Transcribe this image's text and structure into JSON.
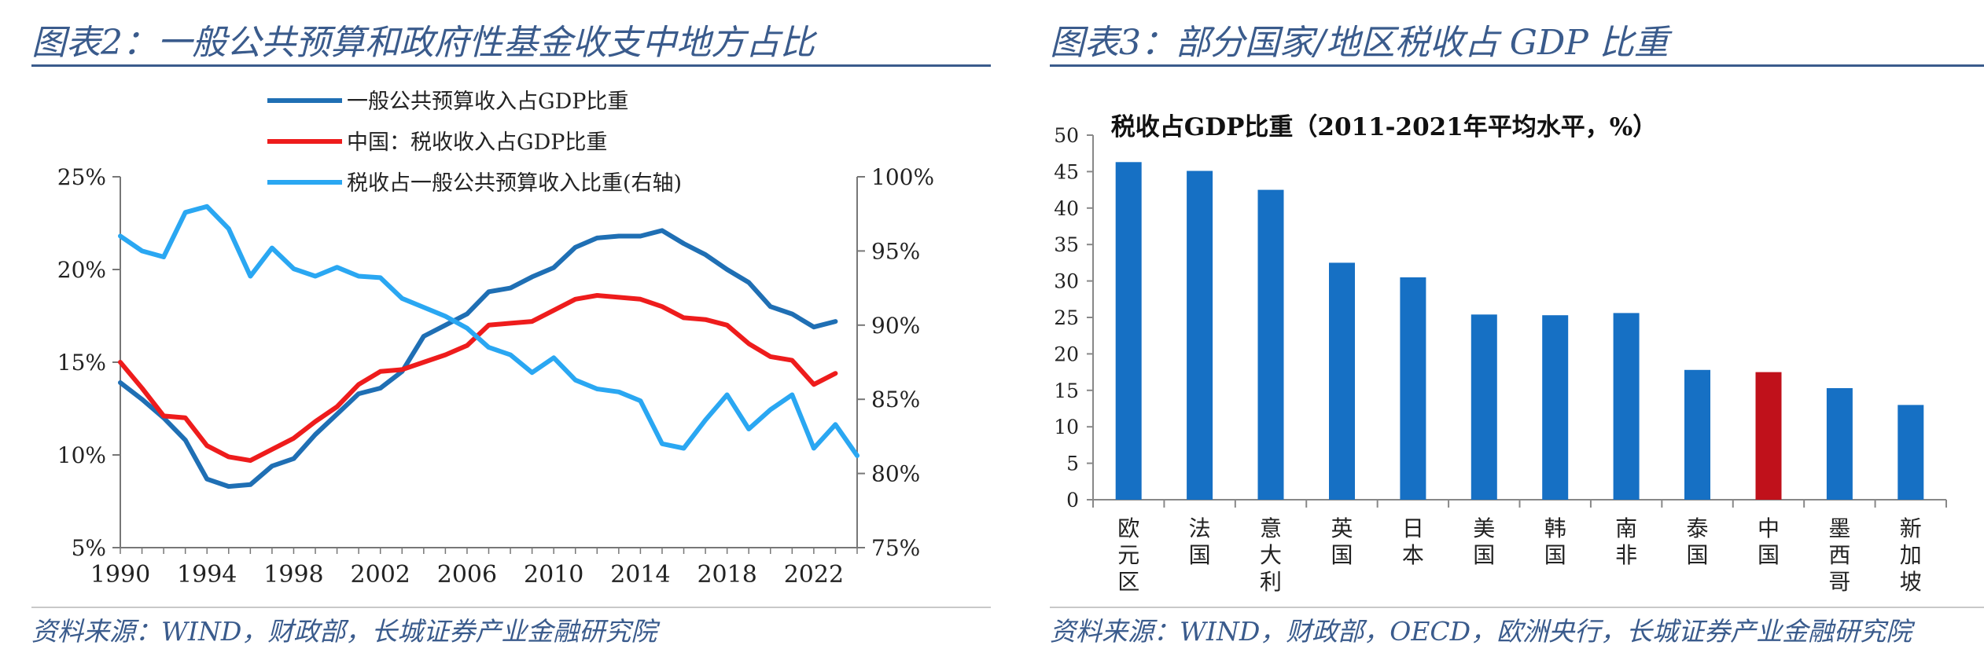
{
  "left": {
    "figure_title": "图表2：一般公共预算和政府性基金收支中地方占比",
    "source": "资料来源：WIND，财政部，长城证券产业金融研究院",
    "chart_data": {
      "type": "line",
      "title": "",
      "xlabel": "",
      "ylabel": "",
      "x_ticks": [
        "1990",
        "1994",
        "1998",
        "2002",
        "2006",
        "2010",
        "2014",
        "2018",
        "2022"
      ],
      "y_left_ticks": [
        "25%",
        "20%",
        "15%",
        "10%",
        "5%"
      ],
      "y_right_ticks": [
        "100%",
        "95%",
        "90%",
        "85%",
        "80%",
        "75%"
      ],
      "ylim_left": [
        5,
        25
      ],
      "ylim_right": [
        75,
        100
      ],
      "xlim": [
        1990,
        2024
      ],
      "legend_position": "top-center",
      "series": [
        {
          "name": "一般公共预算收入占GDP比重",
          "axis": "left",
          "color": "#1f6fb4",
          "x": [
            1990,
            1991,
            1992,
            1993,
            1994,
            1995,
            1996,
            1997,
            1998,
            1999,
            2000,
            2001,
            2002,
            2003,
            2004,
            2005,
            2006,
            2007,
            2008,
            2009,
            2010,
            2011,
            2012,
            2013,
            2014,
            2015,
            2016,
            2017,
            2018,
            2019,
            2020,
            2021,
            2022,
            2023
          ],
          "values": [
            13.9,
            13.0,
            12.0,
            10.8,
            8.7,
            8.3,
            8.4,
            9.4,
            9.8,
            11.1,
            12.2,
            13.3,
            13.6,
            14.5,
            16.4,
            17.0,
            17.6,
            18.8,
            19.0,
            19.6,
            20.1,
            21.2,
            21.7,
            21.8,
            21.8,
            22.1,
            21.4,
            20.8,
            20.0,
            19.3,
            18.0,
            17.6,
            16.9,
            17.2
          ]
        },
        {
          "name": "中国：税收收入占GDP比重",
          "axis": "left",
          "color": "#ee1c1c",
          "x": [
            1990,
            1991,
            1992,
            1993,
            1994,
            1995,
            1996,
            1997,
            1998,
            1999,
            2000,
            2001,
            2002,
            2003,
            2004,
            2005,
            2006,
            2007,
            2008,
            2009,
            2010,
            2011,
            2012,
            2013,
            2014,
            2015,
            2016,
            2017,
            2018,
            2019,
            2020,
            2021,
            2022,
            2023
          ],
          "values": [
            15.0,
            13.6,
            12.1,
            12.0,
            10.5,
            9.9,
            9.7,
            10.3,
            10.9,
            11.8,
            12.6,
            13.8,
            14.5,
            14.6,
            15.0,
            15.4,
            15.9,
            17.0,
            17.1,
            17.2,
            17.8,
            18.4,
            18.6,
            18.5,
            18.4,
            18.0,
            17.4,
            17.3,
            17.0,
            16.0,
            15.3,
            15.1,
            13.8,
            14.4
          ]
        },
        {
          "name": "税收占一般公共预算收入比重(右轴)",
          "axis": "right",
          "color": "#2aa7f2",
          "x": [
            1990,
            1991,
            1992,
            1993,
            1994,
            1995,
            1996,
            1997,
            1998,
            1999,
            2000,
            2001,
            2002,
            2003,
            2004,
            2005,
            2006,
            2007,
            2008,
            2009,
            2010,
            2011,
            2012,
            2013,
            2014,
            2015,
            2016,
            2017,
            2018,
            2019,
            2020,
            2021,
            2022,
            2023,
            2024
          ],
          "values": [
            96.0,
            95.0,
            94.6,
            97.6,
            98.0,
            96.5,
            93.3,
            95.2,
            93.8,
            93.3,
            93.9,
            93.3,
            93.2,
            91.8,
            91.2,
            90.6,
            89.8,
            88.5,
            88.0,
            86.8,
            87.8,
            86.3,
            85.7,
            85.5,
            84.9,
            82.0,
            81.7,
            83.6,
            85.3,
            83.0,
            84.3,
            85.3,
            81.7,
            83.3,
            81.2
          ]
        }
      ]
    }
  },
  "right": {
    "figure_title": "图表3：部分国家/地区税收占 GDP 比重",
    "source": "资料来源：WIND，财政部，OECD，欧洲央行，长城证券产业金融研究院",
    "chart_data": {
      "type": "bar",
      "title": "税收占GDP比重（2011-2021年平均水平，%）",
      "xlabel": "",
      "ylabel": "",
      "ylim": [
        0,
        50
      ],
      "y_ticks": [
        "0",
        "5",
        "10",
        "15",
        "20",
        "25",
        "30",
        "35",
        "40",
        "45",
        "50"
      ],
      "categories": [
        "欧元区",
        "法国",
        "意大利",
        "英国",
        "日本",
        "美国",
        "韩国",
        "南非",
        "泰国",
        "中国",
        "墨西哥",
        "新加坡"
      ],
      "values": [
        46.3,
        45.1,
        42.5,
        32.5,
        30.5,
        25.4,
        25.3,
        25.6,
        17.8,
        17.5,
        15.3,
        13.0
      ],
      "colors": [
        "#1670c4",
        "#1670c4",
        "#1670c4",
        "#1670c4",
        "#1670c4",
        "#1670c4",
        "#1670c4",
        "#1670c4",
        "#1670c4",
        "#c0111b",
        "#1670c4",
        "#1670c4"
      ]
    }
  }
}
